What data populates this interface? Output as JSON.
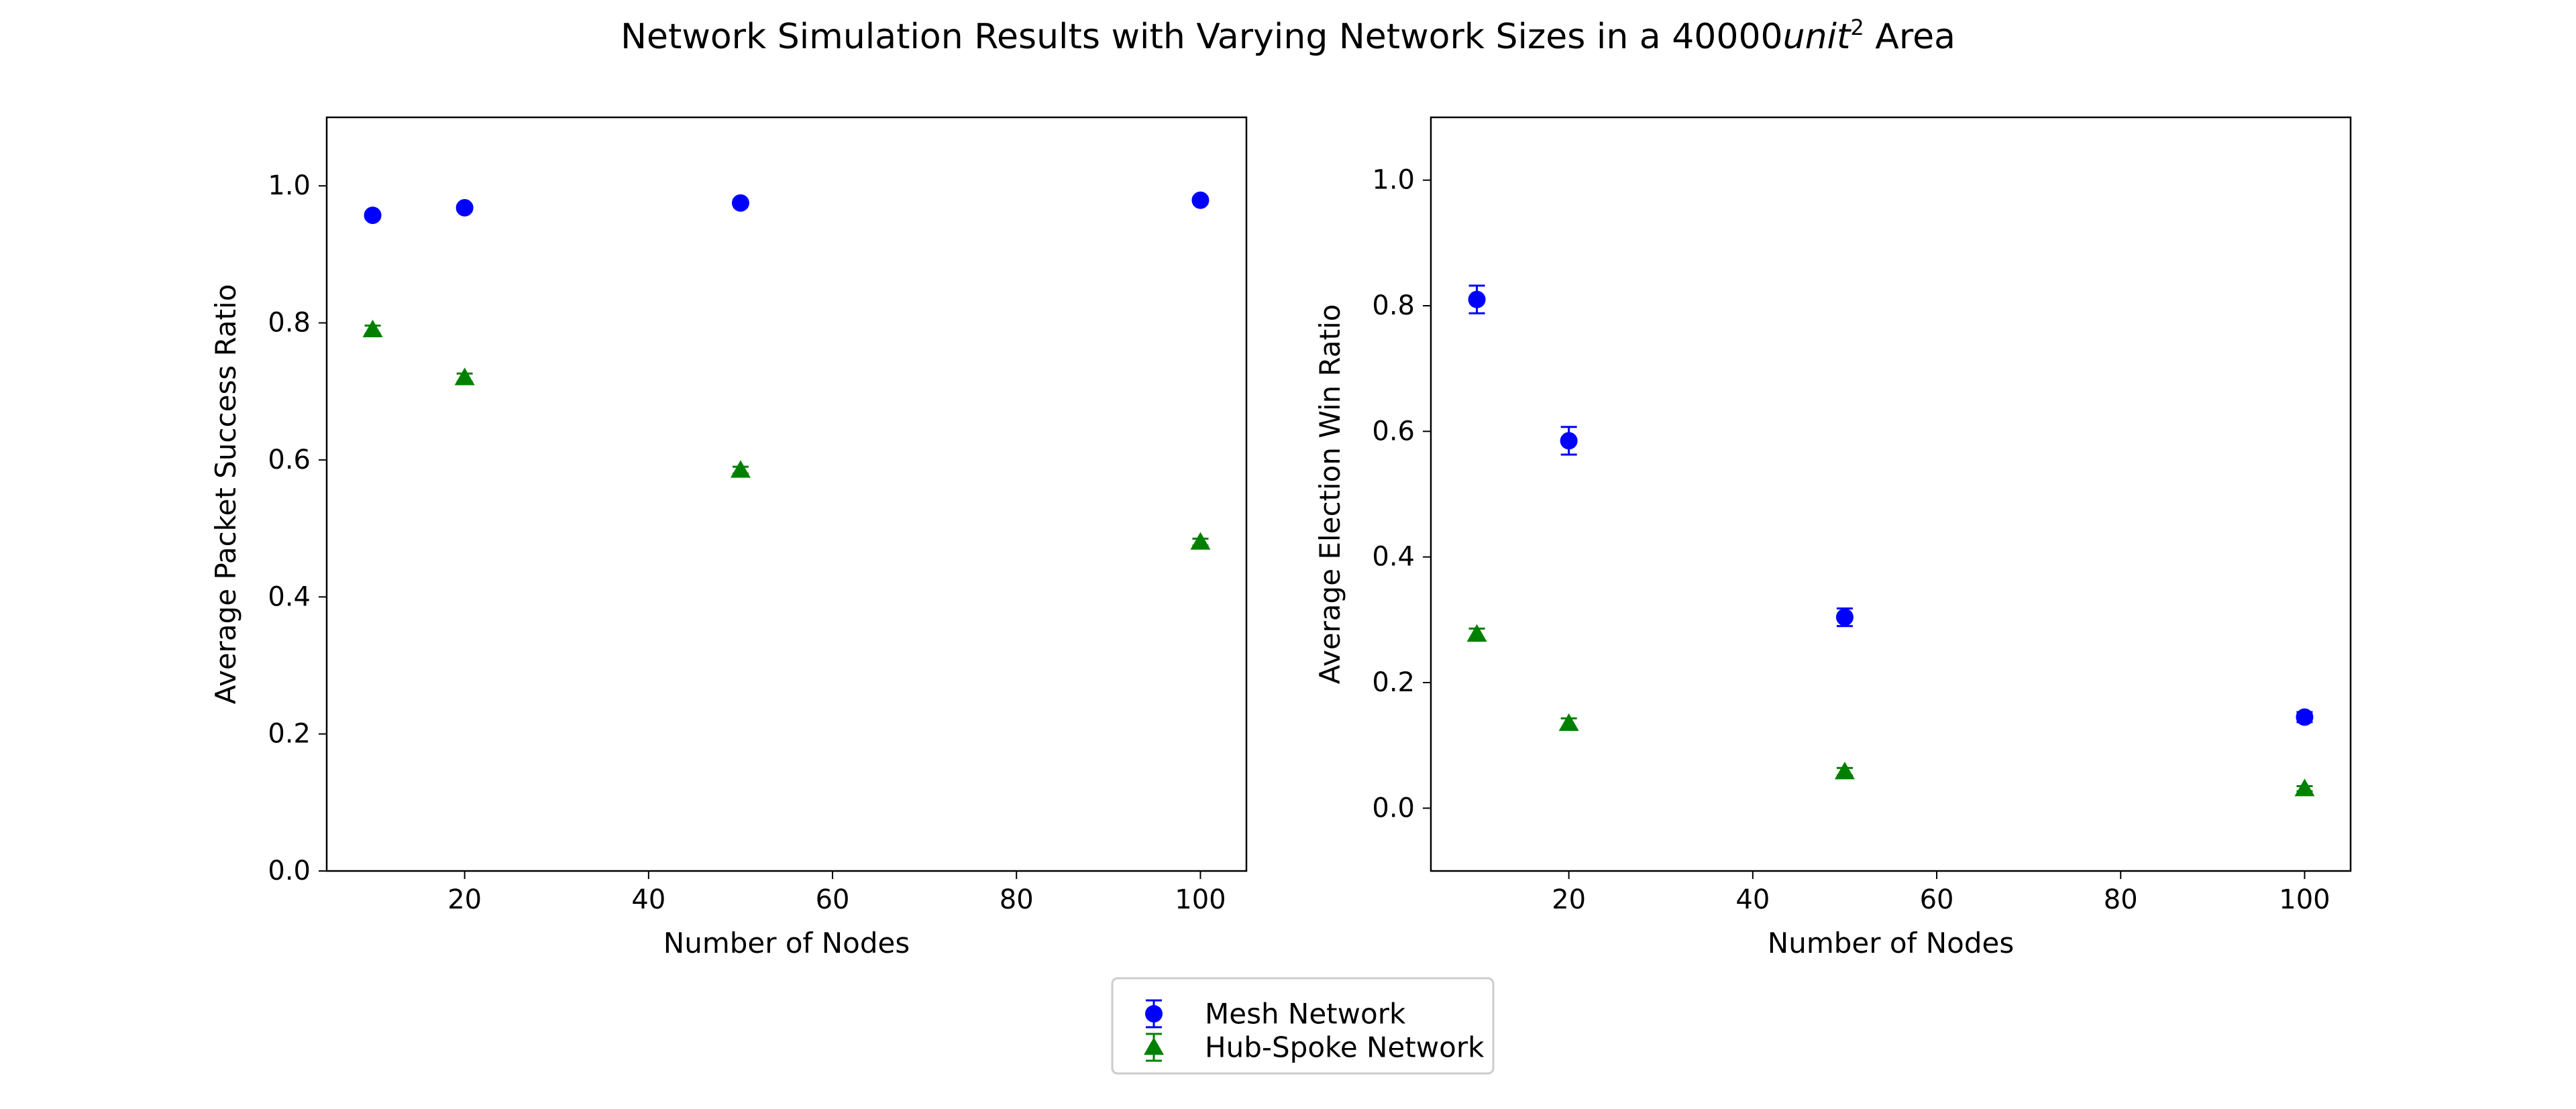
{
  "figure": {
    "title_prefix": "Network Simulation Results with Varying Network Sizes in a 40000",
    "title_unit": "unit",
    "title_exponent": "2",
    "title_suffix": " Area"
  },
  "legend": {
    "placement": "bottom-center",
    "entries": [
      {
        "label": "Mesh Network",
        "color": "#0000ff",
        "marker": "circle"
      },
      {
        "label": "Hub-Spoke Network",
        "color": "#008000",
        "marker": "triangle"
      }
    ]
  },
  "chart_data": [
    {
      "type": "scatter",
      "xlabel": "Number of Nodes",
      "ylabel": "Average Packet Success Ratio",
      "xlim": [
        5,
        105
      ],
      "ylim": [
        0.0,
        1.1
      ],
      "xticks": [
        20,
        40,
        60,
        80,
        100
      ],
      "xtick_labels": [
        "20",
        "40",
        "60",
        "80",
        "100"
      ],
      "yticks": [
        0.0,
        0.2,
        0.4,
        0.6,
        0.8,
        1.0
      ],
      "ytick_labels": [
        "0.0",
        "0.2",
        "0.4",
        "0.6",
        "0.8",
        "1.0"
      ],
      "grid": false,
      "x": [
        10,
        20,
        50,
        100
      ],
      "series": [
        {
          "name": "Mesh Network",
          "color": "#0000ff",
          "marker": "circle",
          "values": [
            0.957,
            0.968,
            0.975,
            0.979
          ],
          "errors": [
            0.004,
            0.004,
            0.003,
            0.003
          ]
        },
        {
          "name": "Hub-Spoke Network",
          "color": "#008000",
          "marker": "triangle",
          "values": [
            0.79,
            0.72,
            0.585,
            0.48
          ],
          "errors": [
            0.006,
            0.006,
            0.005,
            0.005
          ]
        }
      ]
    },
    {
      "type": "scatter",
      "xlabel": "Number of Nodes",
      "ylabel": "Average Election Win Ratio",
      "xlim": [
        5,
        105
      ],
      "ylim": [
        -0.1,
        1.1
      ],
      "xticks": [
        20,
        40,
        60,
        80,
        100
      ],
      "xtick_labels": [
        "20",
        "40",
        "60",
        "80",
        "100"
      ],
      "yticks": [
        0.0,
        0.2,
        0.4,
        0.6,
        0.8,
        1.0
      ],
      "ytick_labels": [
        "0.0",
        "0.2",
        "0.4",
        "0.6",
        "0.8",
        "1.0"
      ],
      "grid": false,
      "x": [
        10,
        20,
        50,
        100
      ],
      "series": [
        {
          "name": "Mesh Network",
          "color": "#0000ff",
          "marker": "circle",
          "values": [
            0.81,
            0.585,
            0.304,
            0.145
          ],
          "errors": [
            0.022,
            0.022,
            0.014,
            0.008
          ]
        },
        {
          "name": "Hub-Spoke Network",
          "color": "#008000",
          "marker": "triangle",
          "values": [
            0.277,
            0.135,
            0.058,
            0.031
          ],
          "errors": [
            0.009,
            0.008,
            0.006,
            0.004
          ]
        }
      ]
    }
  ]
}
